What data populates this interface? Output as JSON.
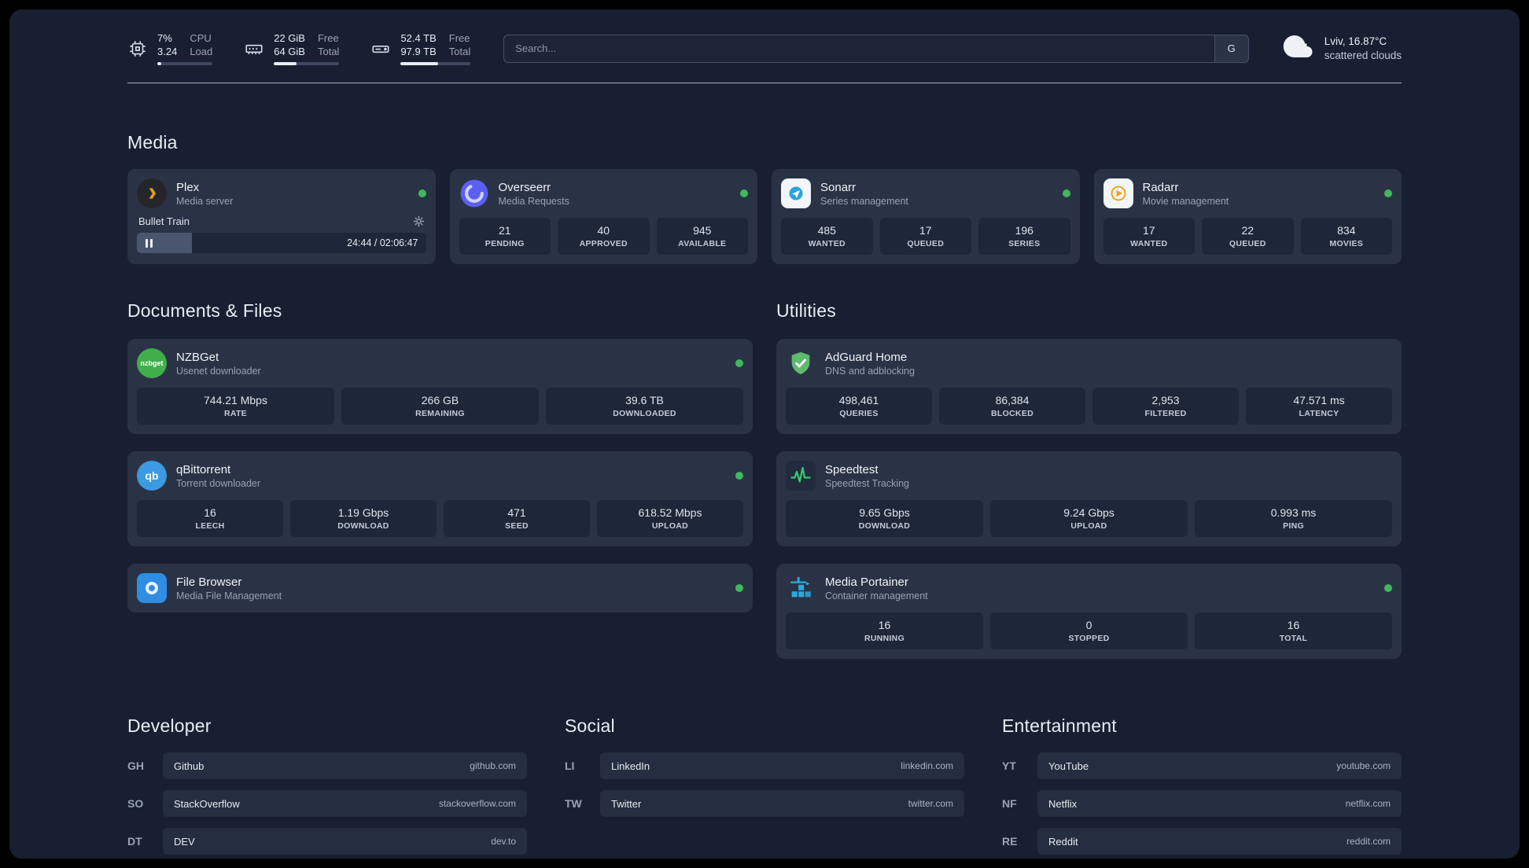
{
  "colors": {
    "background": "#171f30",
    "card": "#2a3345",
    "stat_tile": "#1e2737",
    "status_online": "#41b85e",
    "plex_accent": "#e5a00d"
  },
  "header": {
    "cpu": {
      "value_top": "7%",
      "value_bottom": "3.24",
      "label_top": "CPU",
      "label_bottom": "Load",
      "progress_pct": 7
    },
    "ram": {
      "value_top": "22 GiB",
      "value_bottom": "64 GiB",
      "label_top": "Free",
      "label_bottom": "Total",
      "progress_pct": 34
    },
    "disk": {
      "value_top": "52.4 TB",
      "value_bottom": "97.9 TB",
      "label_top": "Free",
      "label_bottom": "Total",
      "progress_pct": 54
    },
    "search": {
      "placeholder": "Search...",
      "button_label": "G"
    },
    "weather": {
      "location": "Lviv, 16.87°C",
      "condition": "scattered clouds"
    }
  },
  "media": {
    "title": "Media",
    "apps": [
      {
        "name": "Plex",
        "subtitle": "Media server",
        "icon": "plex-icon",
        "status": "online",
        "player": {
          "title": "Bullet Train",
          "time": "24:44 / 02:06:47",
          "progress_pct": 19
        }
      },
      {
        "name": "Overseerr",
        "subtitle": "Media Requests",
        "icon": "overseerr-icon",
        "status": "online",
        "stats": [
          {
            "value": "21",
            "label": "PENDING"
          },
          {
            "value": "40",
            "label": "APPROVED"
          },
          {
            "value": "945",
            "label": "AVAILABLE"
          }
        ]
      },
      {
        "name": "Sonarr",
        "subtitle": "Series management",
        "icon": "sonarr-icon",
        "status": "online",
        "stats": [
          {
            "value": "485",
            "label": "WANTED"
          },
          {
            "value": "17",
            "label": "QUEUED"
          },
          {
            "value": "196",
            "label": "SERIES"
          }
        ]
      },
      {
        "name": "Radarr",
        "subtitle": "Movie management",
        "icon": "radarr-icon",
        "status": "online",
        "stats": [
          {
            "value": "17",
            "label": "WANTED"
          },
          {
            "value": "22",
            "label": "QUEUED"
          },
          {
            "value": "834",
            "label": "MOVIES"
          }
        ]
      }
    ]
  },
  "documents": {
    "title": "Documents & Files",
    "apps": [
      {
        "name": "NZBGet",
        "subtitle": "Usenet downloader",
        "icon": "nzbget-icon",
        "status": "online",
        "stats": [
          {
            "value": "744.21 Mbps",
            "label": "RATE"
          },
          {
            "value": "266 GB",
            "label": "REMAINING"
          },
          {
            "value": "39.6 TB",
            "label": "DOWNLOADED"
          }
        ]
      },
      {
        "name": "qBittorrent",
        "subtitle": "Torrent downloader",
        "icon": "qbittorrent-icon",
        "status": "online",
        "stats": [
          {
            "value": "16",
            "label": "LEECH"
          },
          {
            "value": "1.19 Gbps",
            "label": "DOWNLOAD"
          },
          {
            "value": "471",
            "label": "SEED"
          },
          {
            "value": "618.52 Mbps",
            "label": "UPLOAD"
          }
        ]
      },
      {
        "name": "File Browser",
        "subtitle": "Media File Management",
        "icon": "filebrowser-icon",
        "status": "online",
        "stats": []
      }
    ]
  },
  "utilities": {
    "title": "Utilities",
    "apps": [
      {
        "name": "AdGuard Home",
        "subtitle": "DNS and adblocking",
        "icon": "adguard-icon",
        "status": null,
        "stats": [
          {
            "value": "498,461",
            "label": "QUERIES"
          },
          {
            "value": "86,384",
            "label": "BLOCKED"
          },
          {
            "value": "2,953",
            "label": "FILTERED"
          },
          {
            "value": "47.571 ms",
            "label": "LATENCY"
          }
        ]
      },
      {
        "name": "Speedtest",
        "subtitle": "Speedtest Tracking",
        "icon": "speedtest-icon",
        "status": null,
        "stats": [
          {
            "value": "9.65 Gbps",
            "label": "DOWNLOAD"
          },
          {
            "value": "9.24 Gbps",
            "label": "UPLOAD"
          },
          {
            "value": "0.993 ms",
            "label": "PING"
          }
        ]
      },
      {
        "name": "Media Portainer",
        "subtitle": "Container management",
        "icon": "portainer-icon",
        "status": "online",
        "stats": [
          {
            "value": "16",
            "label": "RUNNING"
          },
          {
            "value": "0",
            "label": "STOPPED"
          },
          {
            "value": "16",
            "label": "TOTAL"
          }
        ]
      }
    ]
  },
  "bookmarks": [
    {
      "title": "Developer",
      "links": [
        {
          "tag": "GH",
          "name": "Github",
          "url": "github.com"
        },
        {
          "tag": "SO",
          "name": "StackOverflow",
          "url": "stackoverflow.com"
        },
        {
          "tag": "DT",
          "name": "DEV",
          "url": "dev.to"
        }
      ]
    },
    {
      "title": "Social",
      "links": [
        {
          "tag": "LI",
          "name": "LinkedIn",
          "url": "linkedin.com"
        },
        {
          "tag": "TW",
          "name": "Twitter",
          "url": "twitter.com"
        }
      ]
    },
    {
      "title": "Entertainment",
      "links": [
        {
          "tag": "YT",
          "name": "YouTube",
          "url": "youtube.com"
        },
        {
          "tag": "NF",
          "name": "Netflix",
          "url": "netflix.com"
        },
        {
          "tag": "RE",
          "name": "Reddit",
          "url": "reddit.com"
        }
      ]
    }
  ]
}
